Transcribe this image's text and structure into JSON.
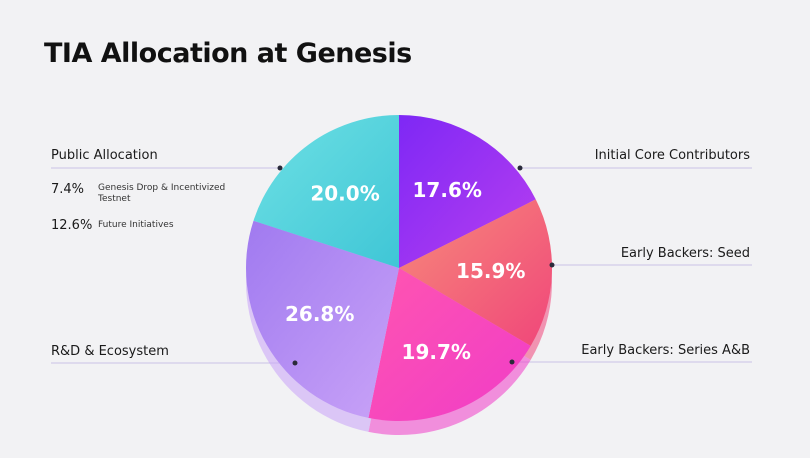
{
  "title": "TIA Allocation at Genesis",
  "chart_data": {
    "type": "pie",
    "title": "TIA Allocation at Genesis",
    "slices": [
      {
        "label": "Initial Core Contributors",
        "value": 17.6,
        "value_label": "17.6%",
        "color": "#b83ff0",
        "color2": "#7e28f5"
      },
      {
        "label": "Early Backers: Seed",
        "value": 15.9,
        "value_label": "15.9%",
        "color": "#f0467a",
        "color2": "#f78b7a"
      },
      {
        "label": "Early Backers: Series A&B",
        "value": 19.7,
        "value_label": "19.7%",
        "color": "#f03cc8",
        "color2": "#ff55b0"
      },
      {
        "label": "R&D & Ecosystem",
        "value": 26.8,
        "value_label": "26.8%",
        "color": "#c9a3f7",
        "color2": "#a07af0"
      },
      {
        "label": "Public Allocation",
        "value": 20.0,
        "value_label": "20.0%",
        "color": "#3fc6d6",
        "color2": "#6ee0e4"
      }
    ],
    "public_allocation_breakdown": [
      {
        "value": "7.4%",
        "label": "Genesis Drop & Incentivized Testnet"
      },
      {
        "value": "12.6%",
        "label": "Future Initiatives"
      }
    ],
    "legend": "callout-labels"
  }
}
